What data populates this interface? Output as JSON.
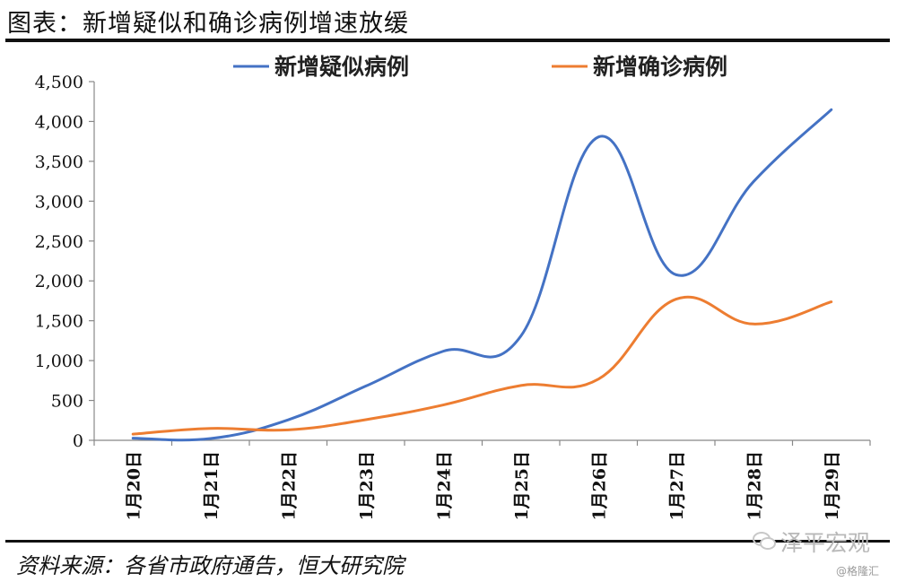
{
  "header": {
    "title": "图表：新增疑似和确诊病例增速放缓"
  },
  "footer": {
    "source": "资料来源：各省市政府通告，恒大研究院"
  },
  "watermark": {
    "brand": "泽平宏观",
    "handle": "@格隆汇"
  },
  "colors": {
    "suspected": "#4472C4",
    "confirmed": "#ED7D31",
    "axis": "#888888",
    "text": "#111111"
  },
  "chart_data": {
    "type": "line",
    "categories": [
      "1月20日",
      "1月21日",
      "1月22日",
      "1月23日",
      "1月24日",
      "1月25日",
      "1月26日",
      "1月27日",
      "1月28日",
      "1月29日"
    ],
    "series": [
      {
        "name": "新增疑似病例",
        "color": "#4472C4",
        "values": [
          27,
          22,
          257,
          680,
          1118,
          1309,
          3806,
          2077,
          3248,
          4148
        ]
      },
      {
        "name": "新增确诊病例",
        "color": "#ED7D31",
        "values": [
          77,
          149,
          131,
          259,
          444,
          688,
          769,
          1771,
          1459,
          1737
        ]
      }
    ],
    "ylim": [
      0,
      4500
    ],
    "yticks": [
      "0",
      "500",
      "1,000",
      "1,500",
      "2,000",
      "2,500",
      "3,000",
      "3,500",
      "4,000",
      "4,500"
    ],
    "legend_position": "top",
    "grid": false,
    "smooth": true
  }
}
